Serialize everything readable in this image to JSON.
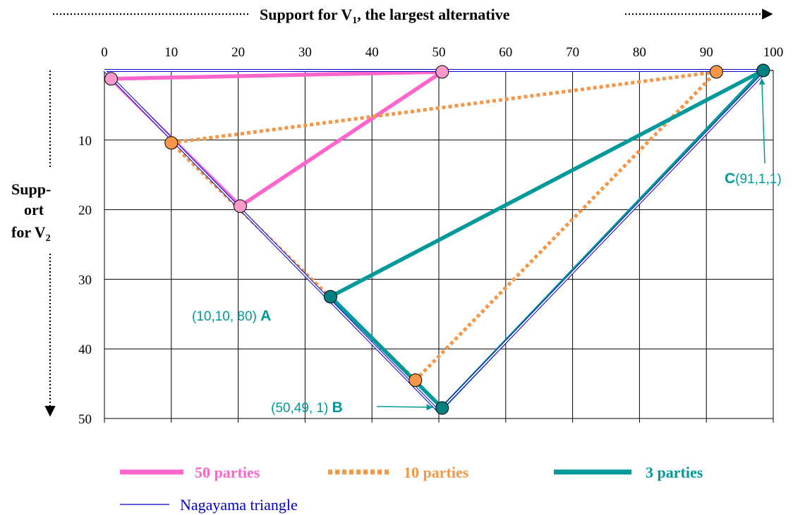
{
  "chart_data": {
    "type": "line",
    "title": "Support for V",
    "title_sub": "1",
    "title_rest": ", the largest alternative",
    "ylabel_lines": [
      "Supp-",
      "ort",
      "for V"
    ],
    "ylabel_sub": "2",
    "x_ticks": [
      "0",
      "10",
      "20",
      "30",
      "40",
      "50",
      "60",
      "70",
      "80",
      "90",
      "100"
    ],
    "y_ticks": [
      "10",
      "20",
      "30",
      "40",
      "50"
    ],
    "xlim": [
      0,
      100
    ],
    "ylim": [
      0,
      50
    ],
    "y_inverted": true,
    "x_axis_position": "top",
    "grid": true,
    "legend_position": "bottom",
    "colors": {
      "pink": "#ff66cc",
      "orange": "#f79646",
      "teal": "#009999",
      "blue": "#0000cc",
      "pink_marker": "#ff99cc",
      "orange_marker": "#f79646",
      "teal_marker": "#008080"
    },
    "series": [
      {
        "name": "50 parties",
        "style": "solid-thick",
        "color": "#ff66cc",
        "marker_color": "#ff99cc",
        "points": [
          [
            1,
            1.2
          ],
          [
            50.5,
            0.2
          ],
          [
            20.3,
            19.5
          ],
          [
            1,
            1.2
          ]
        ],
        "markers": [
          [
            1,
            1.2
          ],
          [
            50.5,
            0.2
          ],
          [
            20.3,
            19.5
          ]
        ]
      },
      {
        "name": "10 parties",
        "style": "dotted-thick",
        "color": "#f79646",
        "marker_color": "#f79646",
        "points": [
          [
            10,
            10.4
          ],
          [
            91.5,
            0.2
          ],
          [
            46.5,
            44.5
          ],
          [
            10,
            10.4
          ]
        ],
        "markers": [
          [
            10,
            10.4
          ],
          [
            91.5,
            0.2
          ],
          [
            46.5,
            44.5
          ]
        ]
      },
      {
        "name": "3 parties",
        "style": "solid-thick",
        "color": "#009999",
        "marker_color": "#008080",
        "points": [
          [
            33.8,
            32.5
          ],
          [
            98.5,
            0
          ],
          [
            50.5,
            48.5
          ],
          [
            33.8,
            32.5
          ]
        ],
        "markers": [
          [
            33.8,
            32.5
          ],
          [
            98.5,
            0
          ],
          [
            50.5,
            48.5
          ]
        ]
      },
      {
        "name": "Nagayama triangle",
        "style": "double-thin",
        "color": "#0000cc",
        "points": [
          [
            0,
            0
          ],
          [
            99,
            0
          ],
          [
            50,
            49
          ],
          [
            0,
            0
          ]
        ]
      }
    ],
    "annotations": [
      {
        "text": "(10,10, 80)",
        "bold": "A",
        "point": [
          33.8,
          32.5
        ],
        "anchor": "left"
      },
      {
        "text": "(50,49, 1)",
        "bold": "B",
        "point": [
          50.5,
          48.5
        ],
        "anchor": "left-arrow"
      },
      {
        "text": "(91,1,1)",
        "bold": "C",
        "point": [
          98.5,
          0
        ],
        "anchor": "below-arrow"
      }
    ],
    "legend": [
      {
        "label": "50 parties",
        "color": "#ff66cc",
        "style": "solid-thick",
        "bold": true
      },
      {
        "label": "10 parties",
        "color": "#f79646",
        "style": "dotted-thick",
        "bold": true
      },
      {
        "label": "3 parties",
        "color": "#009999",
        "style": "solid-thick",
        "bold": true
      },
      {
        "label": "Nagayama triangle",
        "color": "#0000cc",
        "style": "thin",
        "bold": false
      }
    ]
  }
}
